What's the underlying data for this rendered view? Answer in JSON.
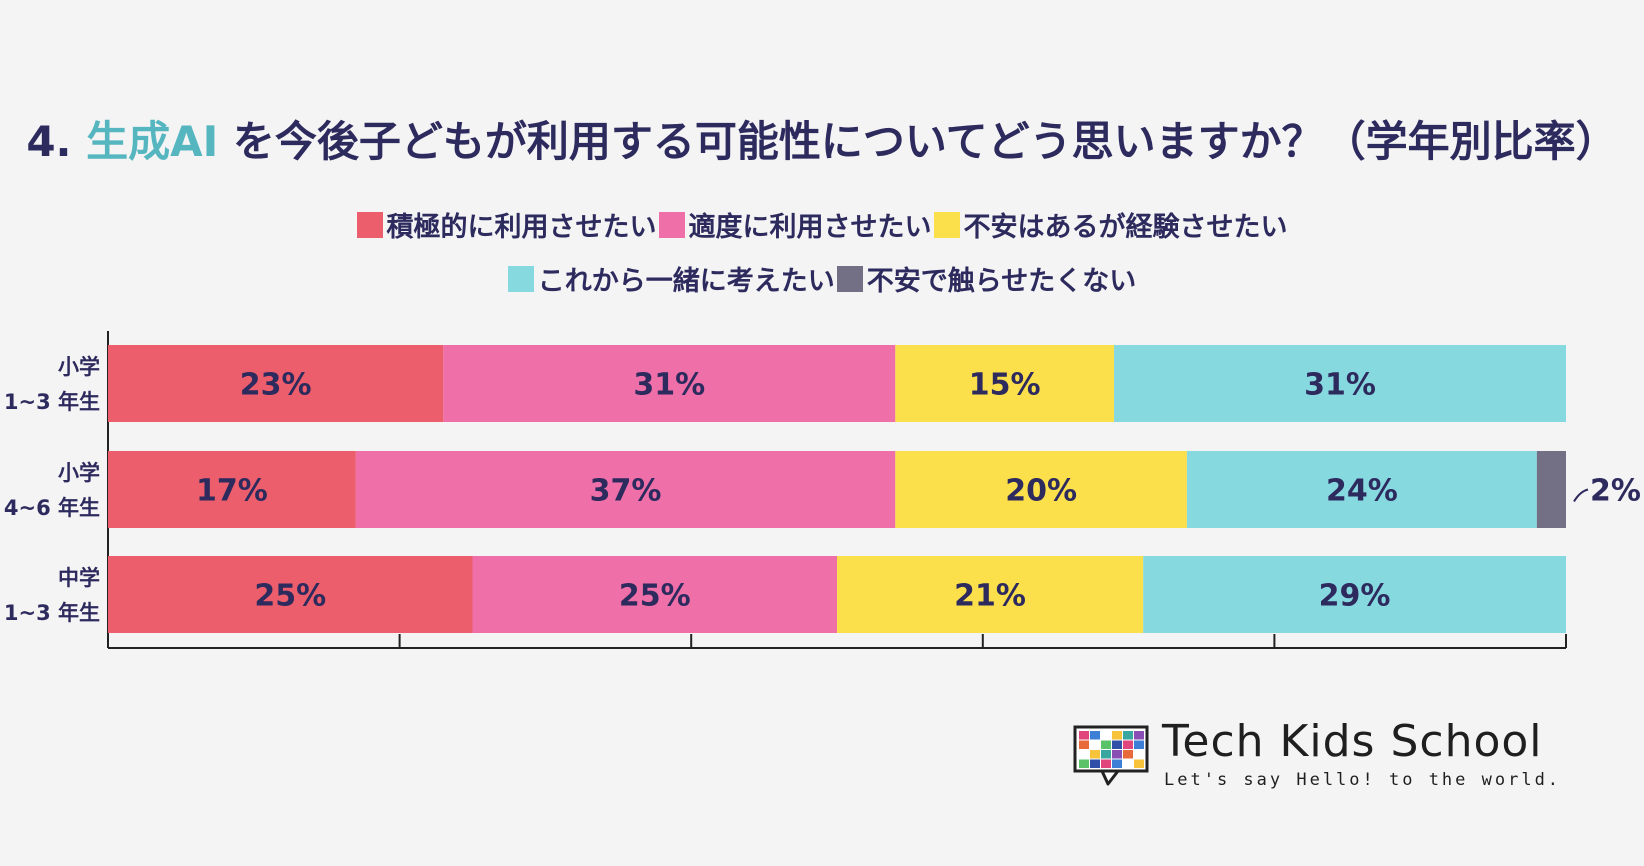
{
  "title": {
    "prefix": "4. ",
    "accent": "生成AI",
    "rest": " を今後子どもが利用する可能性についてどう思いますか？（学年別比率）",
    "accent_color": "#56b6c0"
  },
  "chart_data": {
    "type": "bar",
    "orientation": "horizontal",
    "stacked": true,
    "categories": [
      [
        "小学",
        "1~3 年生"
      ],
      [
        "小学",
        "4~6 年生"
      ],
      [
        "中学",
        "1~3 年生"
      ]
    ],
    "series": [
      {
        "name": "積極的に利用させたい",
        "color": "#ec5e6b",
        "values": [
          23,
          17,
          25
        ]
      },
      {
        "name": "適度に利用させたい",
        "color": "#ef6fa8",
        "values": [
          31,
          37,
          25
        ]
      },
      {
        "name": "不安はあるが経験させたい",
        "color": "#fbe04b",
        "values": [
          15,
          20,
          21
        ]
      },
      {
        "name": "これから一緒に考えたい",
        "color": "#87d9e0",
        "values": [
          31,
          24,
          29
        ]
      },
      {
        "name": "不安で触らせたくない",
        "color": "#736f84",
        "values": [
          0,
          2,
          0
        ]
      }
    ],
    "data_labels": [
      [
        "23%",
        "31%",
        "15%",
        "31%",
        ""
      ],
      [
        "17%",
        "37%",
        "20%",
        "24%",
        "2%"
      ],
      [
        "25%",
        "25%",
        "21%",
        "29%",
        ""
      ]
    ],
    "xlim": [
      0,
      100
    ],
    "x_ticks": [
      0,
      20,
      40,
      60,
      80,
      100
    ],
    "legend_position": "top",
    "grid": false
  },
  "logo": {
    "name": "Tech Kids School",
    "tagline": "Let's say Hello! to the world.",
    "icon": "speech-bubble-mosaic-icon"
  }
}
